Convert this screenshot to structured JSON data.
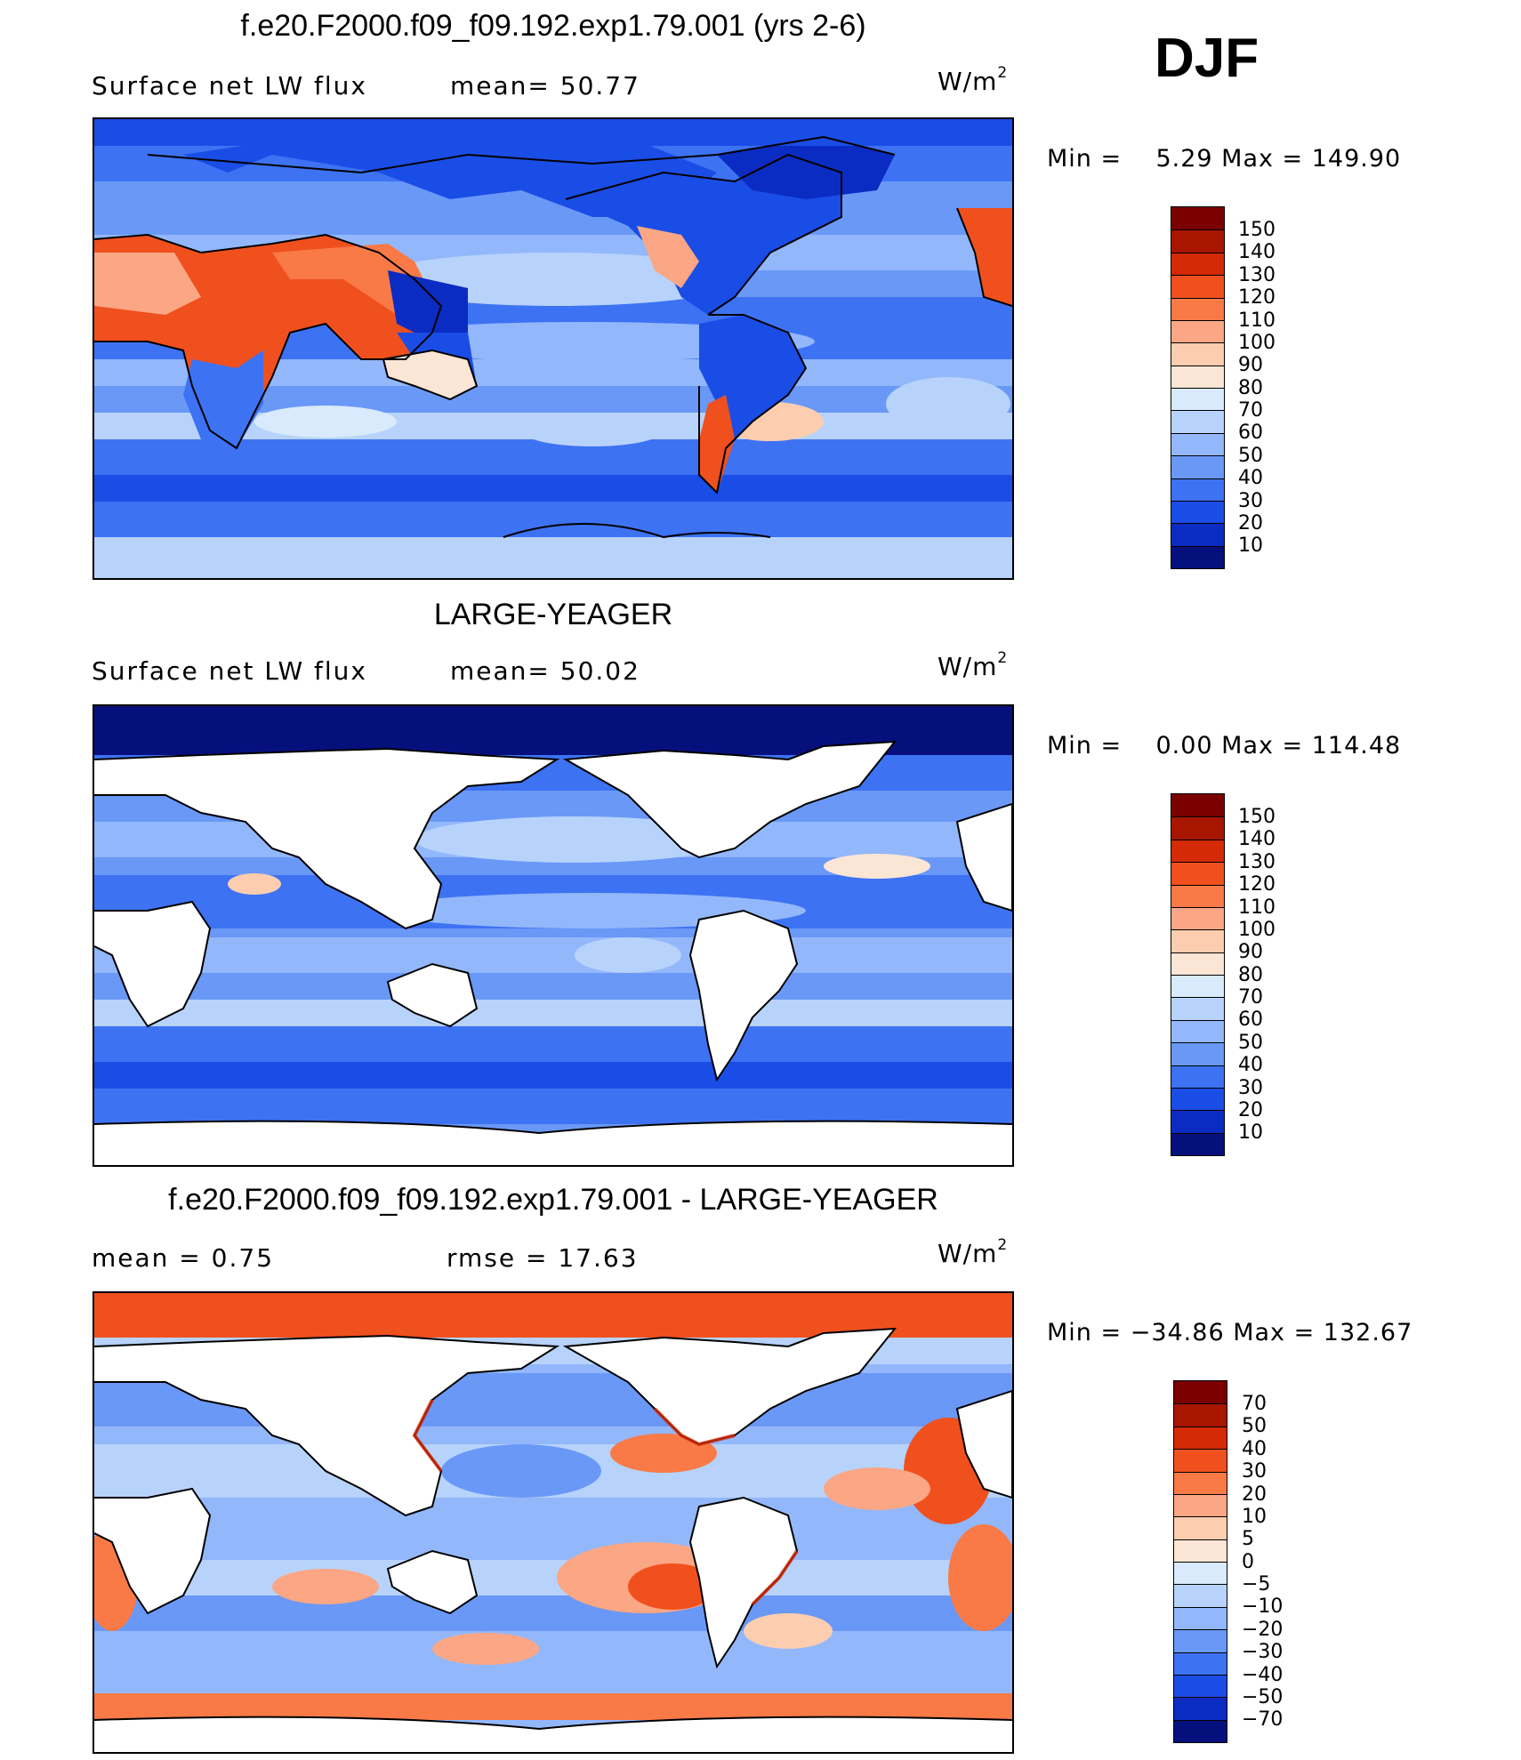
{
  "season": "DJF",
  "unit_base": "W/m",
  "unit_exp": "2",
  "panels": [
    {
      "title": "f.e20.F2000.f09_f09.192.exp1.79.001 (yrs 2-6)",
      "subtitle_left": "Surface net LW flux",
      "subtitle_mid": "mean=  50.77",
      "minmax": "Min =    5.29 Max = 149.90",
      "colorbar_labels": [
        "150",
        "140",
        "130",
        "120",
        "110",
        "100",
        "90",
        "80",
        "70",
        "60",
        "50",
        "40",
        "30",
        "20",
        "10"
      ]
    },
    {
      "title": "LARGE-YEAGER",
      "subtitle_left": "Surface net LW flux",
      "subtitle_mid": "mean=  50.02",
      "minmax": "Min =    0.00 Max = 114.48",
      "colorbar_labels": [
        "150",
        "140",
        "130",
        "120",
        "110",
        "100",
        "90",
        "80",
        "70",
        "60",
        "50",
        "40",
        "30",
        "20",
        "10"
      ]
    },
    {
      "title": "f.e20.F2000.f09_f09.192.exp1.79.001 - LARGE-YEAGER",
      "subtitle_left": "mean =    0.75",
      "subtitle_mid": "rmse =   17.63",
      "minmax": "Min = −34.86 Max = 132.67",
      "colorbar_labels": [
        "70",
        "50",
        "40",
        "30",
        "20",
        "10",
        "5",
        "0",
        "−5",
        "−10",
        "−20",
        "−30",
        "−40",
        "−50",
        "−70"
      ]
    }
  ],
  "colors": {
    "abs_scale": [
      "#7a0000",
      "#a81600",
      "#d42a05",
      "#f0501e",
      "#f97a46",
      "#fba684",
      "#fdcdb0",
      "#fbe6d6",
      "#d8eafb",
      "#b7d3fb",
      "#93b7fb",
      "#6a98f7",
      "#3d72f3",
      "#1a4de6",
      "#0a2cc2",
      "#06107d"
    ],
    "diff_scale": [
      "#7a0000",
      "#a81600",
      "#d42a05",
      "#f0501e",
      "#f97a46",
      "#fba684",
      "#fdcdb0",
      "#fbe6d6",
      "#d8eafb",
      "#b7d3fb",
      "#93b7fb",
      "#6a98f7",
      "#3d72f3",
      "#1a4de6",
      "#0a2cc2",
      "#06107d"
    ],
    "land": "#ffffff",
    "coast": "#000000"
  }
}
